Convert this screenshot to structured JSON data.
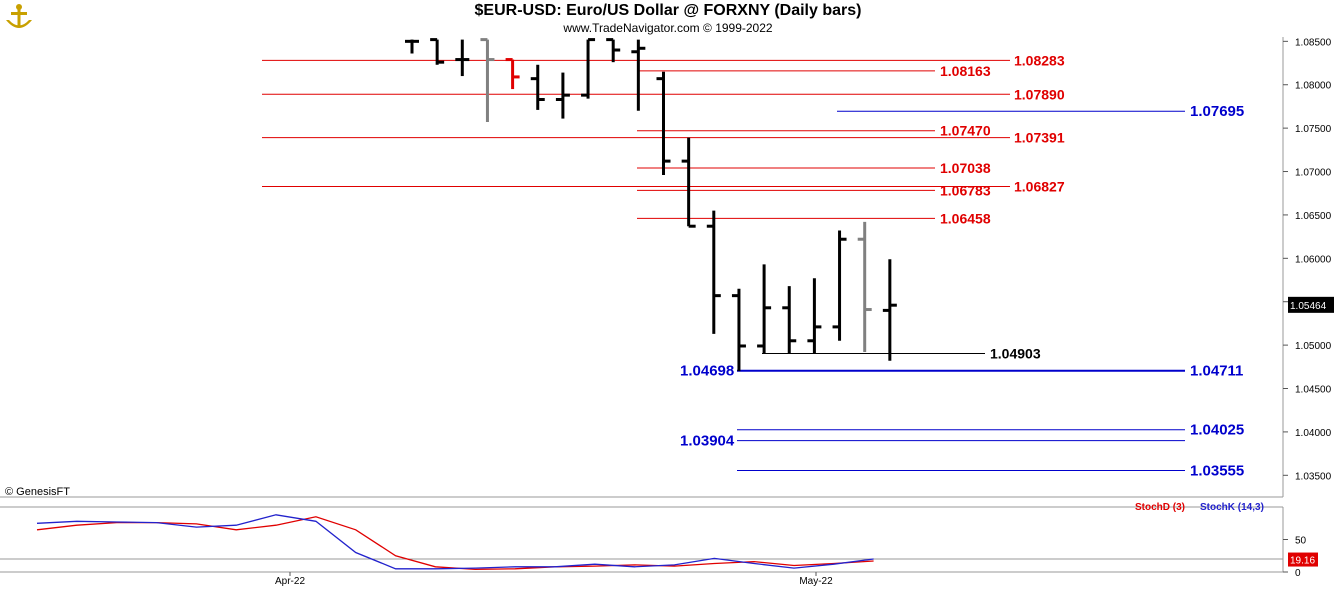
{
  "header": {
    "title": "$EUR-USD:  Euro/US Dollar @ FORXNY  (Daily bars)",
    "subtitle": "www.TradeNavigator.com © 1999-2022",
    "logo_icon": "anchor-logo-icon"
  },
  "copyright": "© GenesisFT",
  "colors": {
    "up_bar": "#000000",
    "down_bar": "#000000",
    "red_bar": "#e00000",
    "gray_bar": "#808080",
    "red_level": "#e00000",
    "blue_level": "#0000cc",
    "black_level": "#000000",
    "stoch_d": "#e00000",
    "stoch_k": "#2222cc",
    "last_price_bg": "#000000",
    "last_stoch_bg": "#e00000"
  },
  "chart_data": [
    {
      "type": "ohlc",
      "ylim": [
        1.0325,
        1.0855
      ],
      "y_ticks": [
        "1.08500",
        "1.08000",
        "1.07500",
        "1.07000",
        "1.06500",
        "1.06000",
        "1.05500",
        "1.05000",
        "1.04500",
        "1.04000",
        "1.03500"
      ],
      "x_ticks": [
        "Apr-22",
        "May-22"
      ],
      "last_price": "1.05464",
      "bars": [
        {
          "o": 1.085,
          "h": 1.0852,
          "l": 1.0836,
          "c": 1.085,
          "color": "black"
        },
        {
          "o": 1.0852,
          "h": 1.0852,
          "l": 1.0823,
          "c": 1.0826,
          "color": "black"
        },
        {
          "o": 1.0829,
          "h": 1.0852,
          "l": 1.081,
          "c": 1.0829,
          "color": "black"
        },
        {
          "o": 1.0852,
          "h": 1.0852,
          "l": 1.0757,
          "c": 1.0829,
          "color": "gray"
        },
        {
          "o": 1.0829,
          "h": 1.0829,
          "l": 1.0795,
          "c": 1.0809,
          "color": "red"
        },
        {
          "o": 1.0807,
          "h": 1.0823,
          "l": 1.0771,
          "c": 1.0783,
          "color": "black"
        },
        {
          "o": 1.0783,
          "h": 1.0814,
          "l": 1.0761,
          "c": 1.0788,
          "color": "black"
        },
        {
          "o": 1.0788,
          "h": 1.0852,
          "l": 1.0784,
          "c": 1.0852,
          "color": "black"
        },
        {
          "o": 1.0852,
          "h": 1.0852,
          "l": 1.0826,
          "c": 1.084,
          "color": "black"
        },
        {
          "o": 1.0838,
          "h": 1.0852,
          "l": 1.077,
          "c": 1.0842,
          "color": "black"
        },
        {
          "o": 1.0807,
          "h": 1.0815,
          "l": 1.0696,
          "c": 1.0712,
          "color": "black"
        },
        {
          "o": 1.0712,
          "h": 1.0739,
          "l": 1.0637,
          "c": 1.0637,
          "color": "black"
        },
        {
          "o": 1.0637,
          "h": 1.0655,
          "l": 1.0513,
          "c": 1.0557,
          "color": "black"
        },
        {
          "o": 1.0557,
          "h": 1.0565,
          "l": 1.047,
          "c": 1.0499,
          "color": "black"
        },
        {
          "o": 1.0499,
          "h": 1.0593,
          "l": 1.049,
          "c": 1.0543,
          "color": "black"
        },
        {
          "o": 1.0543,
          "h": 1.0568,
          "l": 1.049,
          "c": 1.0505,
          "color": "black"
        },
        {
          "o": 1.0505,
          "h": 1.0577,
          "l": 1.049,
          "c": 1.0521,
          "color": "black"
        },
        {
          "o": 1.0521,
          "h": 1.0632,
          "l": 1.0505,
          "c": 1.0622,
          "color": "black"
        },
        {
          "o": 1.0622,
          "h": 1.0642,
          "l": 1.0492,
          "c": 1.0541,
          "color": "gray"
        },
        {
          "o": 1.054,
          "h": 1.0599,
          "l": 1.0482,
          "c": 1.0546,
          "color": "black"
        }
      ],
      "levels": [
        {
          "value": 1.0828,
          "label": "1.08283",
          "color": "red",
          "span": "long",
          "label_side": "right-red"
        },
        {
          "value": 1.0816,
          "label": "1.08163",
          "color": "red",
          "span": "short",
          "label_side": "mid"
        },
        {
          "value": 1.0789,
          "label": "1.07890",
          "color": "red",
          "span": "long",
          "label_side": "right-red"
        },
        {
          "value": 1.07695,
          "label": "1.07695",
          "color": "blue",
          "span": "blue-short",
          "label_side": "right-blue"
        },
        {
          "value": 1.0747,
          "label": "1.07470",
          "color": "red",
          "span": "short",
          "label_side": "mid"
        },
        {
          "value": 1.0739,
          "label": "1.07391",
          "color": "red",
          "span": "long",
          "label_side": "right-red"
        },
        {
          "value": 1.0704,
          "label": "1.07038",
          "color": "red",
          "span": "short",
          "label_side": "mid"
        },
        {
          "value": 1.06827,
          "label": "1.06827",
          "color": "red",
          "span": "long",
          "label_side": "right-red"
        },
        {
          "value": 1.06783,
          "label": "1.06783",
          "color": "red",
          "span": "short",
          "label_side": "mid"
        },
        {
          "value": 1.0646,
          "label": "1.06458",
          "color": "red",
          "span": "short",
          "label_side": "mid"
        },
        {
          "value": 1.04903,
          "label": "1.04903",
          "color": "black",
          "span": "black",
          "label_side": "black"
        },
        {
          "value": 1.04705,
          "label": "1.04711",
          "color": "blue",
          "span": "blue-mid",
          "label_side": "right-blue"
        },
        {
          "value": 1.04705,
          "label": "1.04698",
          "color": "blue",
          "span": "none",
          "label_side": "left-blue"
        },
        {
          "value": 1.04025,
          "label": "1.04025",
          "color": "blue",
          "span": "blue-mid",
          "label_side": "right-blue"
        },
        {
          "value": 1.039,
          "label": "1.03904",
          "color": "blue",
          "span": "blue-mid",
          "label_side": "left-blue"
        },
        {
          "value": 1.03555,
          "label": "1.03555",
          "color": "blue",
          "span": "blue-mid",
          "label_side": "right-blue"
        }
      ]
    },
    {
      "type": "line",
      "title": "StochD (3)  StochK (14,3)",
      "ylim": [
        0,
        100
      ],
      "y_ticks": [
        "50",
        "0"
      ],
      "last_value": "19.16",
      "series": [
        {
          "name": "StochD (3)",
          "color": "red",
          "values": [
            65,
            72,
            76,
            76,
            74,
            65,
            72,
            85,
            65,
            25,
            8,
            4,
            5,
            8,
            9,
            11,
            9,
            13,
            16,
            10,
            13,
            17
          ]
        },
        {
          "name": "StochK (14,3)",
          "color": "blue",
          "values": [
            75,
            78,
            77,
            76,
            69,
            72,
            88,
            78,
            30,
            5,
            5,
            6,
            8,
            8,
            12,
            8,
            11,
            21,
            13,
            6,
            12,
            20
          ]
        }
      ]
    }
  ]
}
